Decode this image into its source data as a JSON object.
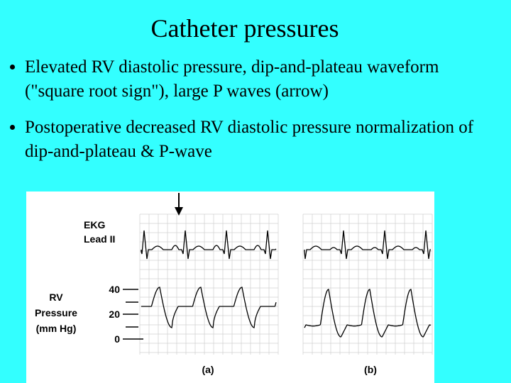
{
  "title": "Catheter pressures",
  "bullets": [
    "Elevated RV diastolic pressure, dip-and-plateau waveform (\"square root sign\"), large P waves (arrow)",
    "Postoperative decreased RV diastolic pressure normalization of dip-and-plateau & P-wave"
  ],
  "figure": {
    "ekg_label": [
      "EKG",
      "Lead II"
    ],
    "pressure_label": [
      "RV",
      "Pressure",
      "(mm Hg)"
    ],
    "scale_ticks": [
      "40",
      "20",
      "0"
    ],
    "panels": [
      "(a)",
      "(b)"
    ]
  }
}
